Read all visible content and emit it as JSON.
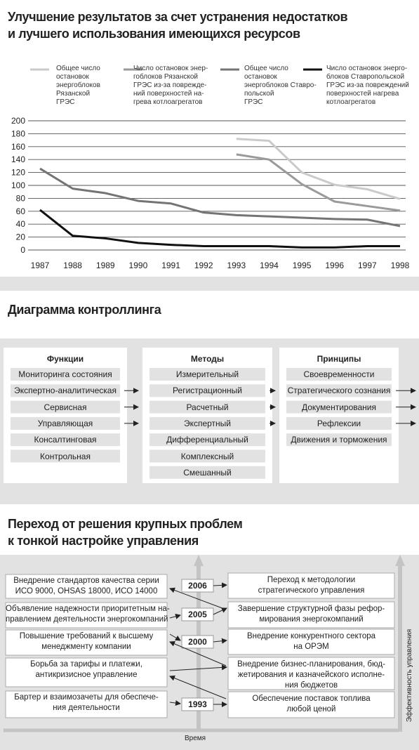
{
  "chart_data": {
    "type": "line",
    "title": [
      "Улучшение результатов за счет устранения недостатков",
      "и лучшего использования имеющихся ресурсов"
    ],
    "x": [
      1987,
      1988,
      1989,
      1990,
      1991,
      1992,
      1993,
      1994,
      1995,
      1996,
      1997,
      1998
    ],
    "xlim": [
      1987,
      1998
    ],
    "xticks": [
      1987,
      1988,
      1989,
      1990,
      1991,
      1992,
      1993,
      1994,
      1995,
      1996,
      1997,
      1998
    ],
    "ylim": [
      0,
      200
    ],
    "yticks": [
      0,
      20,
      40,
      60,
      80,
      100,
      120,
      140,
      160,
      180,
      200
    ],
    "grid": true,
    "series": [
      {
        "name": "Общее число\nостановок\nэнергоблоков\nРязанской\nГРЭС",
        "color": "#cacaca",
        "values": [
          null,
          null,
          null,
          null,
          null,
          null,
          172,
          169,
          120,
          101,
          94,
          79
        ]
      },
      {
        "name": "Число остановок энер-\nгоблоков Рязанской\nГРЭС из-за поврежде-\nний поверхностей на-\nгрева котлоагрегатов",
        "color": "#9a9a9a",
        "values": [
          null,
          null,
          null,
          null,
          null,
          null,
          148,
          140,
          102,
          75,
          68,
          61
        ]
      },
      {
        "name": "Общее число\nостановок\nэнергоблоков Ставро-\nпольской\nГРЭС",
        "color": "#747474",
        "values": [
          126,
          95,
          88,
          76,
          72,
          58,
          54,
          52,
          50,
          48,
          47,
          37
        ]
      },
      {
        "name": "Число остановок энерго-\nблоков Ставропольской\nГРЭС из-за повреждений\nповерхностей нагрева\nкотлоагрегатов",
        "color": "#111111",
        "values": [
          62,
          22,
          18,
          11,
          8,
          6,
          6,
          6,
          4,
          4,
          6,
          6
        ]
      }
    ]
  },
  "controlling": {
    "title": "Диаграмма контроллинга",
    "columns": [
      {
        "header": "Функции",
        "items": [
          "Мониторинга состояния",
          "Экспертно-аналитическая",
          "Сервисная",
          "Управляющая",
          "Консалтинговая",
          "Контрольная"
        ]
      },
      {
        "header": "Методы",
        "items": [
          "Измерительный",
          "Регистрационный",
          "Расчетный",
          "Экспертный",
          "Дифференциальный",
          "Комплексный",
          "Смешанный"
        ]
      },
      {
        "header": "Принципы",
        "items": [
          "Своевременности",
          "Стратегического сознания",
          "Документирования",
          "Рефлексии",
          "Движения и торможения"
        ]
      }
    ]
  },
  "transition": {
    "title": [
      "Переход от решения крупных проблем",
      "к тонкой настройке управления"
    ],
    "left": [
      "Внедрение стандартов качества серии\nИСО 9000, OHSAS 18000, ИСО 14000",
      "Объявление надежности приоритетным на-\nправлением деятельности энергокомпаний",
      "Повышение требований к высшему\nменеджменту компании",
      "Борьба за тарифы и платежи,\nантикризисное управление",
      "Бартер и взаимозачеты для обеспече-\nния деятельности"
    ],
    "right": [
      "Переход к методологии\nстратегического управления",
      "Завершение структурной фазы рефор-\nмирования энергокомпаний",
      "Внедрение конкурентного сектора\nна ОРЭМ",
      "Внедрение бизнес-планирования, бюд-\nжетирования и казначейского исполне-\nния бюджетов",
      "Обеспечение поставок топлива\nлюбой ценой"
    ],
    "years": [
      "2006",
      "2005",
      "2000",
      "1993"
    ],
    "x_axis_label": "Время",
    "y_axis_label": "Эффективность управления"
  }
}
